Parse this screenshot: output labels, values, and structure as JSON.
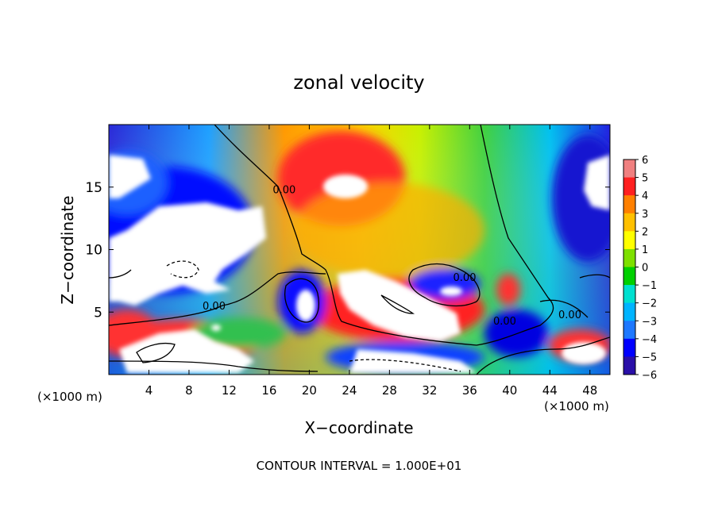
{
  "chart_data": {
    "type": "heatmap",
    "title": "zonal velocity",
    "xlabel": "X−coordinate",
    "ylabel": "Z−coordinate",
    "x_unit_left": "(×1000 m)",
    "x_unit_right": "(×1000 m)",
    "xlim": [
      0,
      50
    ],
    "ylim": [
      0,
      20
    ],
    "x_ticks": [
      4,
      8,
      12,
      16,
      20,
      24,
      28,
      32,
      36,
      40,
      44,
      48
    ],
    "y_ticks": [
      5,
      10,
      15
    ],
    "colorbar": {
      "min": -6,
      "max": 6,
      "ticks": [
        6,
        5,
        4,
        3,
        2,
        1,
        0,
        -1,
        -2,
        -3,
        -4,
        -5,
        -6
      ],
      "tick_labels": [
        "6",
        "5",
        "4",
        "3",
        "2",
        "1",
        "0",
        "−1",
        "−2",
        "−3",
        "−4",
        "−5",
        "−6"
      ],
      "placement": "right"
    },
    "contour_labels": [
      {
        "text": "0.00",
        "x": 10.5,
        "y": 5.2
      },
      {
        "text": "0.00",
        "x": 35.5,
        "y": 7.5
      },
      {
        "text": "0.00",
        "x": 39.5,
        "y": 4.0
      },
      {
        "text": "0.00",
        "x": 46.0,
        "y": 4.5
      },
      {
        "text": "0.00",
        "x": 17.5,
        "y": 14.5
      }
    ],
    "grid": false
  },
  "footer": {
    "contour_interval": "CONTOUR INTERVAL = 1.000E+01"
  },
  "colors": {
    "ramp": [
      "#6a0dad",
      "#2a0fa8",
      "#0000ff",
      "#1e78ff",
      "#00b4ff",
      "#00e0d0",
      "#00d000",
      "#7ee000",
      "#ffff00",
      "#ffc000",
      "#ff8000",
      "#ff2020",
      "#f08080"
    ]
  }
}
